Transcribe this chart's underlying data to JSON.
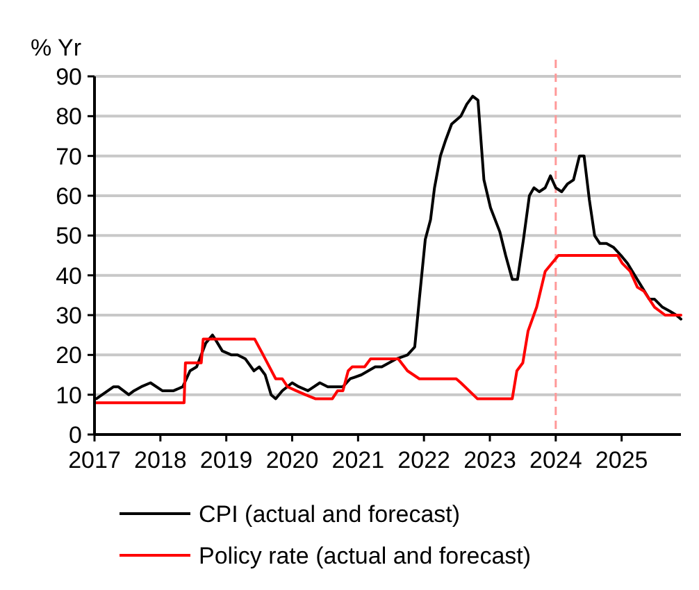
{
  "chart_data": {
    "type": "line",
    "ylabel": "% Yr",
    "xlim": [
      2017,
      2025.9
    ],
    "xticks": [
      2017,
      2018,
      2019,
      2020,
      2021,
      2022,
      2023,
      2024,
      2025
    ],
    "ylim": [
      0,
      90
    ],
    "yticks": [
      0,
      10,
      20,
      30,
      40,
      50,
      60,
      70,
      80,
      90
    ],
    "grid": "y",
    "legend": "bottom",
    "line_style": "solid",
    "marker": "none",
    "ref_lines": [
      {
        "axis": "x",
        "value": 2024,
        "color": "#ff9999",
        "line_style": "dashed"
      }
    ],
    "series": [
      {
        "name": "CPI (actual and forecast)",
        "color": "#000000",
        "x": [
          2017.03,
          2017.29,
          2017.36,
          2017.52,
          2017.6,
          2017.71,
          2017.85,
          2018.03,
          2018.2,
          2018.34,
          2018.45,
          2018.55,
          2018.69,
          2018.79,
          2018.83,
          2018.94,
          2019.08,
          2019.17,
          2019.29,
          2019.42,
          2019.5,
          2019.59,
          2019.68,
          2019.75,
          2019.85,
          2020.0,
          2020.1,
          2020.24,
          2020.42,
          2020.54,
          2020.77,
          2020.88,
          2021.05,
          2021.26,
          2021.36,
          2021.58,
          2021.75,
          2021.86,
          2021.93,
          2022.02,
          2022.1,
          2022.16,
          2022.25,
          2022.33,
          2022.42,
          2022.56,
          2022.65,
          2022.74,
          2022.82,
          2022.91,
          2023.01,
          2023.15,
          2023.24,
          2023.34,
          2023.42,
          2023.51,
          2023.6,
          2023.67,
          2023.75,
          2023.84,
          2023.92,
          2024.0,
          2024.09,
          2024.18,
          2024.27,
          2024.36,
          2024.43,
          2024.51,
          2024.59,
          2024.67,
          2024.77,
          2024.88,
          2024.99,
          2025.09,
          2025.2,
          2025.31,
          2025.42,
          2025.5,
          2025.62,
          2025.73,
          2025.83,
          2025.9
        ],
        "values": [
          9,
          12,
          12,
          10,
          11,
          12,
          13,
          11,
          11,
          12,
          16,
          17,
          23,
          25,
          24,
          21,
          20,
          20,
          19,
          16,
          17,
          15,
          10,
          9,
          11,
          13,
          12,
          11,
          13,
          12,
          12,
          14,
          15,
          17,
          17,
          19,
          20,
          22,
          34,
          49,
          54,
          62,
          70,
          74,
          78,
          80,
          83,
          85,
          84,
          64,
          57,
          51,
          45,
          39,
          39,
          49,
          60,
          62,
          61,
          62,
          65,
          62,
          61,
          63,
          64,
          70,
          70,
          59,
          50,
          48,
          48,
          47,
          45,
          43,
          40,
          37,
          34,
          34,
          32,
          31,
          30,
          29
        ]
      },
      {
        "name": "Policy rate (actual and forecast)",
        "color": "#ff0000",
        "x": [
          2017.0,
          2018.36,
          2018.38,
          2018.62,
          2018.65,
          2019.43,
          2019.56,
          2019.75,
          2019.85,
          2019.93,
          2020.06,
          2020.2,
          2020.35,
          2020.61,
          2020.69,
          2020.77,
          2020.85,
          2020.91,
          2021.1,
          2021.19,
          2021.61,
          2021.75,
          2021.93,
          2022.49,
          2022.56,
          2022.81,
          2022.99,
          2023.09,
          2023.34,
          2023.41,
          2023.5,
          2023.58,
          2023.71,
          2023.84,
          2024.04,
          2024.94,
          2025.01,
          2025.13,
          2025.24,
          2025.34,
          2025.5,
          2025.66,
          2025.9
        ],
        "values": [
          8,
          8,
          18,
          18,
          24,
          24,
          20,
          14,
          14,
          12,
          11,
          10,
          9,
          9,
          11,
          11,
          16,
          17,
          17,
          19,
          19,
          16,
          14,
          14,
          13,
          9,
          9,
          9,
          9,
          16,
          18,
          26,
          32,
          41,
          45,
          45,
          43,
          41,
          37,
          36,
          32,
          30,
          30
        ]
      }
    ]
  }
}
